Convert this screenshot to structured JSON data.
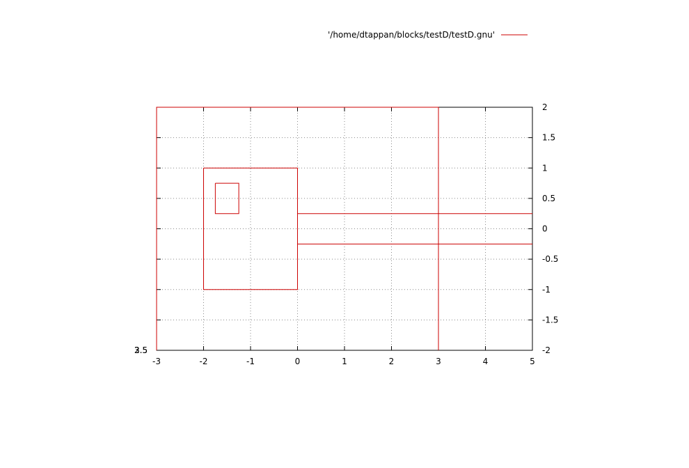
{
  "chart_data": {
    "type": "line",
    "title": "",
    "xlabel": "",
    "ylabel": "",
    "xlim": [
      -3,
      5
    ],
    "ylim": [
      -2,
      2
    ],
    "xticks": [
      -3,
      -2,
      -1,
      0,
      1,
      2,
      3,
      4,
      5
    ],
    "yticks": [
      -2,
      -1.5,
      -1,
      -0.5,
      0,
      0.5,
      1,
      1.5,
      2
    ],
    "xtick_labels": [
      "-3",
      "-2",
      "-1",
      "0",
      "1",
      "2",
      "3",
      "4",
      "5"
    ],
    "ytick_labels": [
      "-2",
      "-1.5",
      "-1",
      "-0.5",
      "0",
      "0.5",
      "1",
      "1.5",
      "2"
    ],
    "y_axis_side": "right",
    "grid": true,
    "legend": "top-right",
    "series": [
      {
        "name": "'/home/dtappan/blocks/testD/testD.gnu'",
        "color": "#cc0000",
        "segments": [
          [
            [
              -3,
              -2
            ],
            [
              -3,
              2
            ],
            [
              3,
              2
            ],
            [
              3,
              -2
            ]
          ],
          [
            [
              -2,
              1
            ],
            [
              0,
              1
            ],
            [
              0,
              -1
            ],
            [
              -2,
              -1
            ],
            [
              -2,
              1
            ]
          ],
          [
            [
              -1.75,
              0.75
            ],
            [
              -1.25,
              0.75
            ],
            [
              -1.25,
              0.25
            ],
            [
              -1.75,
              0.25
            ],
            [
              -1.75,
              0.75
            ]
          ],
          [
            [
              0,
              0.25
            ],
            [
              5,
              0.25
            ]
          ],
          [
            [
              0,
              -0.25
            ],
            [
              5,
              -0.25
            ]
          ]
        ]
      }
    ],
    "overlapped_labels": [
      "2.5",
      "3",
      "3.5"
    ]
  }
}
